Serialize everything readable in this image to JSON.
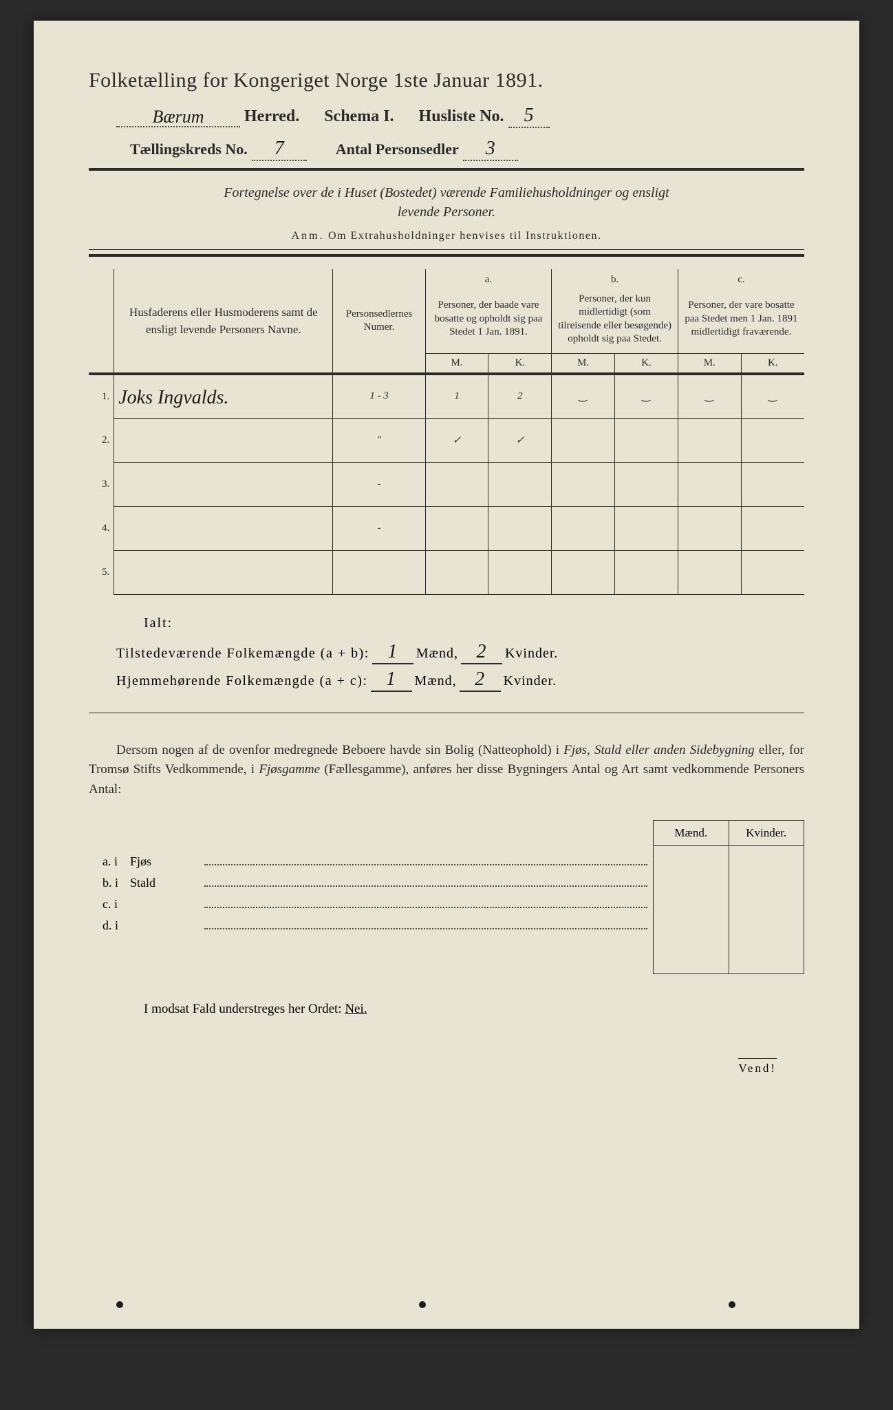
{
  "header": {
    "title": "Folketælling for Kongeriget Norge 1ste Januar 1891.",
    "herred_handwritten": "Bærum",
    "herred_label": "Herred.",
    "schema_label": "Schema I.",
    "husliste_label": "Husliste No.",
    "husliste_no": "5",
    "kreds_label": "Tællingskreds No.",
    "kreds_no": "7",
    "antal_label": "Antal Personsedler",
    "antal_val": "3"
  },
  "subtitle": {
    "line1": "Fortegnelse over de i Huset (Bostedet) værende Familiehusholdninger og ensligt",
    "line2": "levende Personer.",
    "anm_label": "Anm.",
    "anm_text": "Om Extrahusholdninger henvises til Instruktionen."
  },
  "table_headers": {
    "col1": "Husfaderens eller Husmoderens samt de ensligt levende Personers Navne.",
    "col2": "Personsedlernes Numer.",
    "col_a_label": "a.",
    "col_a": "Personer, der baade vare bosatte og opholdt sig paa Stedet 1 Jan. 1891.",
    "col_b_label": "b.",
    "col_b": "Personer, der kun midlertidigt (som tilreisende eller besøgende) opholdt sig paa Stedet.",
    "col_c_label": "c.",
    "col_c": "Personer, der vare bosatte paa Stedet men 1 Jan. 1891 midlertidigt fraværende.",
    "M": "M.",
    "K": "K."
  },
  "rows": [
    {
      "n": "1.",
      "name": "Joks Ingvalds.",
      "numer": "1 - 3",
      "aM": "1",
      "aK": "2",
      "bM": "‿",
      "bK": "‿",
      "cM": "‿",
      "cK": "‿"
    },
    {
      "n": "2.",
      "name": "",
      "numer": "\"",
      "aM": "✓",
      "aK": "✓",
      "bM": "",
      "bK": "",
      "cM": "",
      "cK": ""
    },
    {
      "n": "3.",
      "name": "",
      "numer": "-",
      "aM": "",
      "aK": "",
      "bM": "",
      "bK": "",
      "cM": "",
      "cK": ""
    },
    {
      "n": "4.",
      "name": "",
      "numer": "-",
      "aM": "",
      "aK": "",
      "bM": "",
      "bK": "",
      "cM": "",
      "cK": ""
    },
    {
      "n": "5.",
      "name": "",
      "numer": "",
      "aM": "",
      "aK": "",
      "bM": "",
      "bK": "",
      "cM": "",
      "cK": ""
    }
  ],
  "summary": {
    "ialt": "Ialt:",
    "line1_label": "Tilstedeværende Folkemængde (a + b):",
    "line2_label": "Hjemmehørende Folkemængde (a + c):",
    "maend": "Mænd,",
    "kvinder": "Kvinder.",
    "l1_m": "1",
    "l1_k": "2",
    "l2_m": "1",
    "l2_k": "2"
  },
  "paragraph": "Dersom nogen af de ovenfor medregnede Beboere havde sin Bolig (Natteophold) i Fjøs, Stald eller anden Sidebygning eller, for Tromsø Stifts Vedkommende, i Fjøsgamme (Fællesgamme), anføres her disse Bygningers Antal og Art samt vedkommende Personers Antal:",
  "bottom": {
    "maend_hdr": "Mænd.",
    "kvinder_hdr": "Kvinder.",
    "rows": [
      {
        "key": "a. i",
        "name": "Fjøs"
      },
      {
        "key": "b. i",
        "name": "Stald"
      },
      {
        "key": "c. i",
        "name": ""
      },
      {
        "key": "d. i",
        "name": ""
      }
    ]
  },
  "nei_line": {
    "pre": "I modsat Fald understreges her Ordet:",
    "word": "Nei."
  },
  "vend": "Vend!",
  "colors": {
    "page_bg": "#e8e4d4",
    "outer_bg": "#2a2a2a",
    "ink": "#2a2a2a",
    "handwriting": "#1a1a1a"
  }
}
